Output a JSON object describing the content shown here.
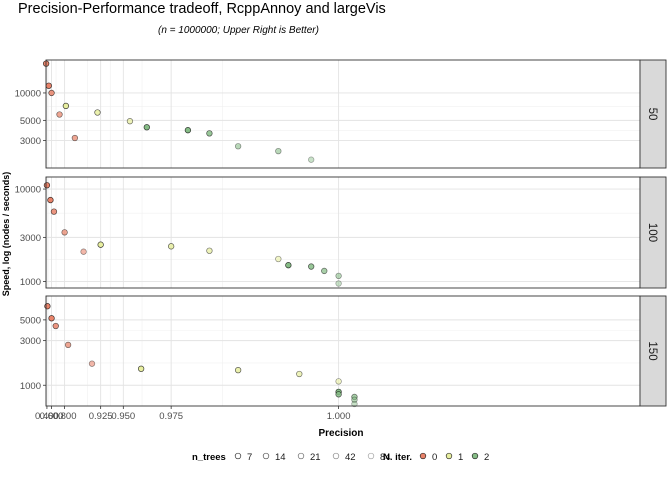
{
  "chart_data": {
    "type": "scatter",
    "title": "Precision-Performance tradeoff, RcppAnnoy and largeVis",
    "subtitle": "(n = 1000000; Upper Right is Better)",
    "xlabel": "Precision",
    "ylabel": "Speed, log (nodes / seconds)",
    "x_scale": "reciprocal",
    "y_scale": "log",
    "xlim": [
      0.335,
      1.01
    ],
    "x_ticks": [
      0.4,
      0.6,
      0.8,
      0.925,
      0.95,
      0.975,
      1.0
    ],
    "x_tick_labels": [
      "0.400",
      "0.600",
      "0.800",
      "0.925",
      "0.950",
      "0.975",
      "1.000"
    ],
    "x_minor_gridlines": [
      0.5,
      0.7,
      0.9,
      0.9375,
      0.9625,
      0.9875
    ],
    "grid": true,
    "legend": {
      "position": "bottom",
      "groups": [
        {
          "title": "n_trees",
          "items": [
            "7",
            "14",
            "21",
            "42",
            "84"
          ]
        },
        {
          "title": "N. iter.",
          "items": [
            "0",
            "1",
            "2"
          ]
        }
      ]
    },
    "series_colors": {
      "0": "#E8836A",
      "1": "#E8EFA0",
      "2": "#86BC86"
    },
    "panels": [
      {
        "strip": "50",
        "ylim": [
          1500,
          23000
        ],
        "y_ticks": [
          3000,
          5000,
          10000
        ],
        "y_tick_labels": [
          "3000",
          "5000",
          "10000"
        ],
        "points": [
          {
            "x": 0.345,
            "y": 21000,
            "n_trees": 7,
            "iter": 0
          },
          {
            "x": 0.5,
            "y": 12000,
            "n_trees": 7,
            "iter": 0
          },
          {
            "x": 0.6,
            "y": 10000,
            "n_trees": 14,
            "iter": 0
          },
          {
            "x": 0.75,
            "y": 5800,
            "n_trees": 21,
            "iter": 0
          },
          {
            "x": 0.86,
            "y": 3200,
            "n_trees": 21,
            "iter": 0
          },
          {
            "x": 0.81,
            "y": 7200,
            "n_trees": 7,
            "iter": 1
          },
          {
            "x": 0.92,
            "y": 6100,
            "n_trees": 14,
            "iter": 1
          },
          {
            "x": 0.955,
            "y": 4900,
            "n_trees": 21,
            "iter": 1
          },
          {
            "x": 0.965,
            "y": 4200,
            "n_trees": 7,
            "iter": 2
          },
          {
            "x": 0.98,
            "y": 3900,
            "n_trees": 7,
            "iter": 2
          },
          {
            "x": 0.985,
            "y": 3600,
            "n_trees": 14,
            "iter": 2
          },
          {
            "x": 0.99,
            "y": 2600,
            "n_trees": 42,
            "iter": 2
          },
          {
            "x": 0.995,
            "y": 2300,
            "n_trees": 42,
            "iter": 2
          },
          {
            "x": 0.998,
            "y": 1850,
            "n_trees": 84,
            "iter": 2
          }
        ]
      },
      {
        "strip": "100",
        "ylim": [
          850,
          13500
        ],
        "y_ticks": [
          1000,
          3000,
          10000
        ],
        "y_tick_labels": [
          "1000",
          "3000",
          "10000"
        ],
        "points": [
          {
            "x": 0.4,
            "y": 11000,
            "n_trees": 7,
            "iter": 0
          },
          {
            "x": 0.565,
            "y": 7600,
            "n_trees": 7,
            "iter": 0
          },
          {
            "x": 0.66,
            "y": 5700,
            "n_trees": 14,
            "iter": 0
          },
          {
            "x": 0.8,
            "y": 3400,
            "n_trees": 21,
            "iter": 0
          },
          {
            "x": 0.89,
            "y": 2100,
            "n_trees": 42,
            "iter": 0
          },
          {
            "x": 0.925,
            "y": 2500,
            "n_trees": 7,
            "iter": 1
          },
          {
            "x": 0.975,
            "y": 2400,
            "n_trees": 14,
            "iter": 1
          },
          {
            "x": 0.985,
            "y": 2150,
            "n_trees": 21,
            "iter": 1
          },
          {
            "x": 0.995,
            "y": 1750,
            "n_trees": 42,
            "iter": 1
          },
          {
            "x": 0.996,
            "y": 1500,
            "n_trees": 7,
            "iter": 2
          },
          {
            "x": 0.998,
            "y": 1450,
            "n_trees": 14,
            "iter": 2
          },
          {
            "x": 0.999,
            "y": 1300,
            "n_trees": 21,
            "iter": 2
          },
          {
            "x": 1.0,
            "y": 1150,
            "n_trees": 42,
            "iter": 2
          },
          {
            "x": 1.0,
            "y": 950,
            "n_trees": 84,
            "iter": 2
          }
        ]
      },
      {
        "strip": "150",
        "ylim": [
          600,
          9000
        ],
        "y_ticks": [
          1000,
          3000,
          5000
        ],
        "y_tick_labels": [
          "1000",
          "3000",
          "5000"
        ],
        "points": [
          {
            "x": 0.43,
            "y": 7000,
            "n_trees": 7,
            "iter": 0
          },
          {
            "x": 0.6,
            "y": 5200,
            "n_trees": 7,
            "iter": 0
          },
          {
            "x": 0.695,
            "y": 4300,
            "n_trees": 14,
            "iter": 0
          },
          {
            "x": 0.825,
            "y": 2700,
            "n_trees": 21,
            "iter": 0
          },
          {
            "x": 0.91,
            "y": 1700,
            "n_trees": 42,
            "iter": 0
          },
          {
            "x": 0.962,
            "y": 1500,
            "n_trees": 7,
            "iter": 1
          },
          {
            "x": 0.99,
            "y": 1450,
            "n_trees": 14,
            "iter": 1
          },
          {
            "x": 0.997,
            "y": 1320,
            "n_trees": 21,
            "iter": 1
          },
          {
            "x": 1.0,
            "y": 1100,
            "n_trees": 42,
            "iter": 1
          },
          {
            "x": 1.0,
            "y": 850,
            "n_trees": 7,
            "iter": 2
          },
          {
            "x": 1.0,
            "y": 800,
            "n_trees": 14,
            "iter": 2
          },
          {
            "x": 1.001,
            "y": 750,
            "n_trees": 21,
            "iter": 2
          },
          {
            "x": 1.001,
            "y": 700,
            "n_trees": 42,
            "iter": 2
          },
          {
            "x": 1.001,
            "y": 630,
            "n_trees": 84,
            "iter": 2
          }
        ]
      }
    ]
  }
}
